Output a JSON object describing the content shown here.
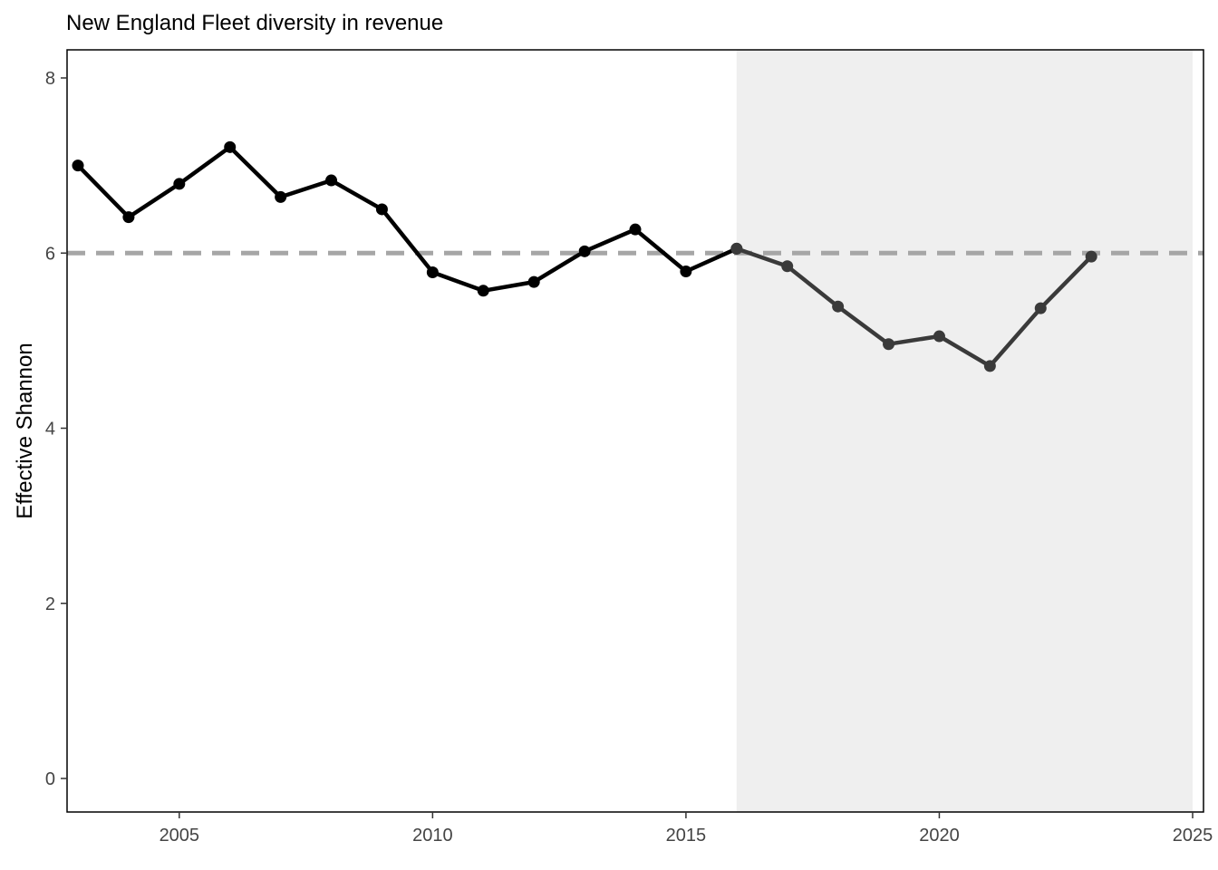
{
  "chart_data": {
    "type": "line",
    "title": "New England Fleet diversity in revenue",
    "xlabel": "",
    "ylabel": "Effective Shannon",
    "xlim": [
      2003,
      2025
    ],
    "ylim": [
      0,
      8
    ],
    "x_ticks": [
      2005,
      2010,
      2015,
      2020,
      2025
    ],
    "y_ticks": [
      0,
      2,
      4,
      6,
      8
    ],
    "grid": false,
    "shaded_region": {
      "x_start": 2016,
      "x_end": 2025,
      "color": "#efefef"
    },
    "reference_line": {
      "y": 6,
      "style": "dashed",
      "color": "#a6a6a6"
    },
    "series": [
      {
        "color": "#000000",
        "x": [
          2003,
          2004,
          2005,
          2006,
          2007,
          2008,
          2009,
          2010,
          2011,
          2012,
          2013,
          2014,
          2015,
          2016
        ],
        "values": [
          7.0,
          6.41,
          6.79,
          7.21,
          6.64,
          6.83,
          6.5,
          5.78,
          5.57,
          5.67,
          6.02,
          6.27,
          5.79,
          6.05
        ]
      },
      {
        "color": "#3a3a3a",
        "x": [
          2016,
          2017,
          2018,
          2019,
          2020,
          2021,
          2022,
          2023
        ],
        "values": [
          6.05,
          5.85,
          5.39,
          4.96,
          5.05,
          4.71,
          5.37,
          5.96
        ]
      }
    ]
  }
}
